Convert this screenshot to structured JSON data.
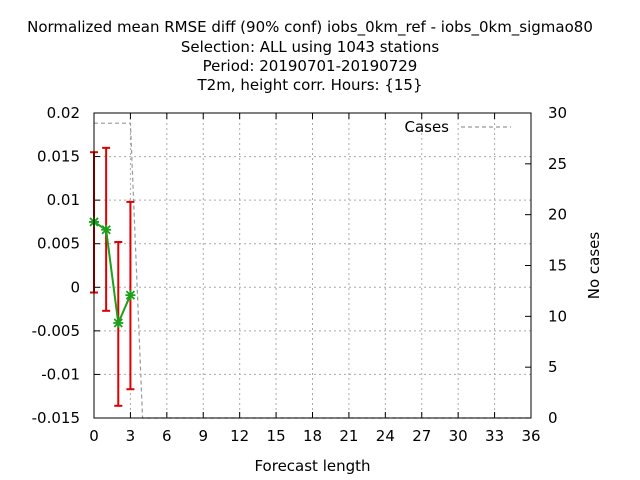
{
  "chart_data": {
    "type": "line",
    "title": [
      "Normalized mean RMSE diff (90% conf) iobs_0km_ref - iobs_0km_sigmao80",
      "Selection: ALL using  1043 stations",
      "Period: 20190701-20190729",
      "T2m, height corr.    Hours: {15}"
    ],
    "xlabel": "Forecast length",
    "ylabel": "",
    "y2label": "No cases",
    "xlim": [
      0,
      36
    ],
    "ylim": [
      -0.015,
      0.02
    ],
    "y2lim": [
      0,
      30
    ],
    "grid": true,
    "legend_position": "top-right",
    "x_ticks": [
      0,
      3,
      6,
      9,
      12,
      15,
      18,
      21,
      24,
      27,
      30,
      33,
      36
    ],
    "x_tick_labels": [
      "0",
      "3",
      "6",
      "9",
      "12",
      "15",
      "18",
      "21",
      "24",
      "27",
      "30",
      "33",
      "36"
    ],
    "y_ticks": [
      -0.015,
      -0.01,
      -0.005,
      0,
      0.005,
      0.01,
      0.015,
      0.02
    ],
    "y_tick_labels": [
      "-0.015",
      "-0.01",
      "-0.005",
      "0",
      "0.005",
      "0.01",
      "0.015",
      "0.02"
    ],
    "y2_ticks": [
      0,
      5,
      10,
      15,
      20,
      25,
      30
    ],
    "y2_tick_labels": [
      "0",
      "5",
      "10",
      "15",
      "20",
      "25",
      "30"
    ],
    "series": [
      {
        "color": "#1aa01a",
        "axis": "y",
        "x": [
          0,
          1,
          2,
          3
        ],
        "y": [
          0.0075,
          0.0066,
          -0.0041,
          -0.0009
        ],
        "err_low": [
          -0.0006,
          -0.0027,
          -0.0136,
          -0.0117
        ],
        "err_high": [
          0.0155,
          0.016,
          0.0052,
          0.0098
        ],
        "err_color": "#dd0000"
      },
      {
        "name": "Cases",
        "color": "#999999",
        "axis": "y2",
        "dashed": true,
        "x": [
          0,
          1,
          2,
          3,
          4,
          5,
          6,
          7,
          8,
          9,
          10,
          11,
          12,
          13,
          14,
          15,
          16,
          17,
          18,
          19,
          20,
          21,
          22,
          23,
          24,
          25,
          26,
          27,
          28,
          29,
          30,
          31,
          32,
          33,
          34,
          35,
          36
        ],
        "y": [
          29,
          29,
          29,
          29,
          0,
          0,
          0,
          0,
          0,
          0,
          0,
          0,
          0,
          0,
          0,
          0,
          0,
          0,
          0,
          0,
          0,
          0,
          0,
          0,
          0,
          0,
          0,
          0,
          0,
          0,
          0,
          0,
          0,
          0,
          0,
          0,
          0
        ]
      }
    ]
  }
}
